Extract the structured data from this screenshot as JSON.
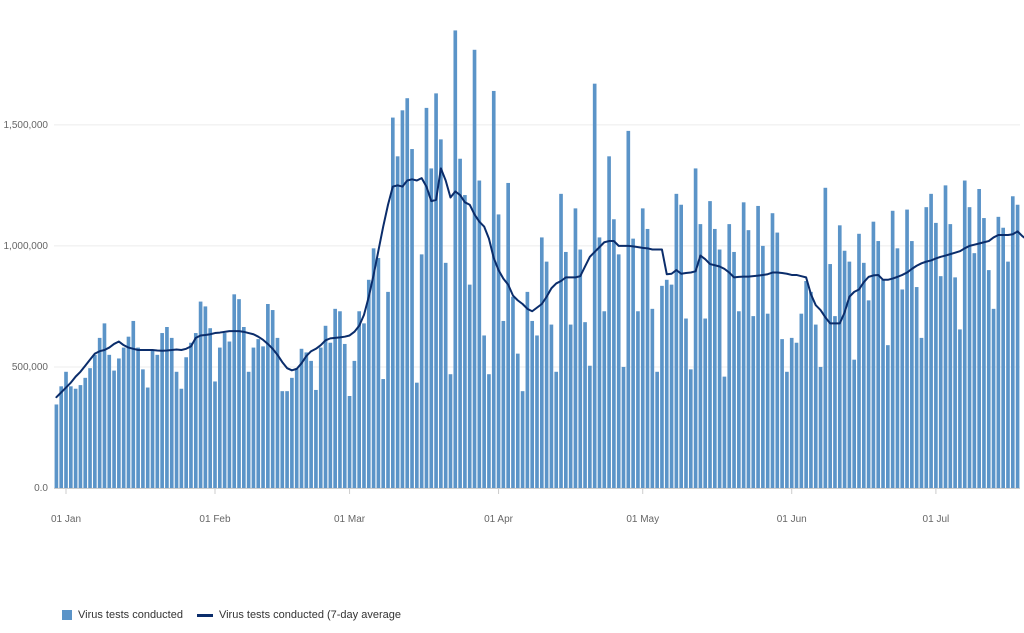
{
  "colors": {
    "bar": "#5B94C8",
    "line": "#0B2D6B",
    "grid": "#ececec",
    "axis": "#cccccc"
  },
  "legend": {
    "bar_label": "Virus tests conducted",
    "line_label": "Virus tests conducted (7-day average"
  },
  "chart_data": {
    "type": "bar",
    "title": "",
    "xlabel": "",
    "ylabel": "",
    "ylim": [
      0,
      1900000
    ],
    "grid": true,
    "legend_position": "bottom-left",
    "y_ticks": [
      {
        "value": 0,
        "label": "0.0"
      },
      {
        "value": 500000,
        "label": "500,000"
      },
      {
        "value": 1000000,
        "label": "1,000,000"
      },
      {
        "value": 1500000,
        "label": "1,500,000"
      }
    ],
    "x_ticks": [
      {
        "index": 2,
        "label": "01 Jan"
      },
      {
        "index": 33,
        "label": "01 Feb"
      },
      {
        "index": 61,
        "label": "01 Mar"
      },
      {
        "index": 92,
        "label": "01 Apr"
      },
      {
        "index": 122,
        "label": "01 May"
      },
      {
        "index": 153,
        "label": "01 Jun"
      },
      {
        "index": 183,
        "label": "01 Jul"
      }
    ],
    "series": [
      {
        "name": "Virus tests conducted",
        "type": "bar",
        "values": [
          345000,
          420000,
          480000,
          420000,
          410000,
          425000,
          455000,
          495000,
          550000,
          620000,
          680000,
          550000,
          485000,
          535000,
          580000,
          625000,
          690000,
          580000,
          490000,
          415000,
          570000,
          550000,
          640000,
          665000,
          620000,
          480000,
          410000,
          540000,
          600000,
          640000,
          770000,
          750000,
          660000,
          440000,
          580000,
          640000,
          605000,
          800000,
          780000,
          665000,
          480000,
          580000,
          615000,
          585000,
          760000,
          735000,
          620000,
          400000,
          400000,
          455000,
          495000,
          575000,
          560000,
          525000,
          405000,
          580000,
          670000,
          600000,
          740000,
          730000,
          595000,
          380000,
          525000,
          730000,
          680000,
          860000,
          990000,
          950000,
          450000,
          810000,
          1530000,
          1370000,
          1560000,
          1610000,
          1400000,
          435000,
          965000,
          1570000,
          1320000,
          1630000,
          1440000,
          930000,
          470000,
          1890000,
          1360000,
          1210000,
          840000,
          1810000,
          1270000,
          630000,
          470000,
          1640000,
          1130000,
          690000,
          1260000,
          790000,
          555000,
          400000,
          810000,
          690000,
          630000,
          1035000,
          935000,
          675000,
          480000,
          1215000,
          975000,
          675000,
          1155000,
          985000,
          685000,
          505000,
          1670000,
          1035000,
          730000,
          1370000,
          1110000,
          965000,
          500000,
          1475000,
          1030000,
          730000,
          1155000,
          1070000,
          740000,
          480000,
          835000,
          860000,
          840000,
          1215000,
          1170000,
          700000,
          490000,
          1320000,
          1090000,
          700000,
          1185000,
          1070000,
          985000,
          460000,
          1090000,
          975000,
          730000,
          1180000,
          1065000,
          710000,
          1165000,
          1000000,
          720000,
          1135000,
          1055000,
          615000,
          480000,
          620000,
          600000,
          720000,
          855000,
          810000,
          675000,
          500000,
          1240000,
          925000,
          710000,
          1085000,
          980000,
          935000,
          530000,
          1050000,
          930000,
          775000,
          1100000,
          1020000,
          860000,
          590000,
          1145000,
          990000,
          820000,
          1150000,
          1020000,
          830000,
          620000,
          1160000,
          1215000,
          1095000,
          875000,
          1250000,
          1090000,
          870000,
          655000,
          1270000,
          1160000,
          970000,
          1235000,
          1115000,
          900000,
          740000,
          1120000,
          1075000,
          935000,
          1205000,
          1170000
        ]
      },
      {
        "name": "Virus tests conducted (7-day average",
        "type": "line",
        "values": [
          375000,
          395000,
          415000,
          435000,
          460000,
          480000,
          505000,
          530000,
          555000,
          565000,
          570000,
          580000,
          595000,
          605000,
          590000,
          580000,
          575000,
          570000,
          570000,
          570000,
          570000,
          568000,
          567000,
          568000,
          570000,
          572000,
          570000,
          575000,
          585000,
          620000,
          630000,
          632000,
          635000,
          640000,
          642000,
          645000,
          648000,
          648000,
          648000,
          645000,
          640000,
          635000,
          625000,
          612000,
          595000,
          575000,
          550000,
          520000,
          495000,
          486000,
          492000,
          515000,
          545000,
          565000,
          575000,
          590000,
          610000,
          618000,
          620000,
          622000,
          625000,
          630000,
          645000,
          670000,
          715000,
          790000,
          880000,
          980000,
          1080000,
          1170000,
          1245000,
          1250000,
          1245000,
          1270000,
          1275000,
          1270000,
          1280000,
          1245000,
          1185000,
          1190000,
          1320000,
          1270000,
          1200000,
          1225000,
          1210000,
          1180000,
          1170000,
          1130000,
          1100000,
          1080000,
          1030000,
          950000,
          900000,
          865000,
          840000,
          795000,
          775000,
          760000,
          740000,
          730000,
          745000,
          760000,
          790000,
          825000,
          845000,
          855000,
          870000,
          870000,
          870000,
          875000,
          915000,
          955000,
          975000,
          995000,
          1015000,
          1020000,
          1020000,
          1000000,
          1000000,
          1000000,
          998000,
          995000,
          992000,
          990000,
          985000,
          985000,
          985000,
          883000,
          885000,
          900000,
          885000,
          888000,
          890000,
          895000,
          960000,
          945000,
          925000,
          920000,
          915000,
          905000,
          890000,
          870000,
          872000,
          873000,
          873000,
          875000,
          877000,
          880000,
          883000,
          890000,
          890000,
          888000,
          885000,
          880000,
          880000,
          875000,
          870000,
          800000,
          755000,
          735000,
          705000,
          680000,
          680000,
          680000,
          725000,
          790000,
          810000,
          820000,
          850000,
          872000,
          878000,
          880000,
          860000,
          860000,
          865000,
          872000,
          880000,
          890000,
          905000,
          918000,
          928000,
          935000,
          940000,
          948000,
          955000,
          960000,
          966000,
          972000,
          978000,
          990000,
          1000000,
          1005000,
          1010000,
          1015000,
          1020000,
          1035000,
          1045000,
          1045000,
          1045000,
          1048000,
          1060000,
          1040000,
          1025000
        ]
      }
    ]
  }
}
